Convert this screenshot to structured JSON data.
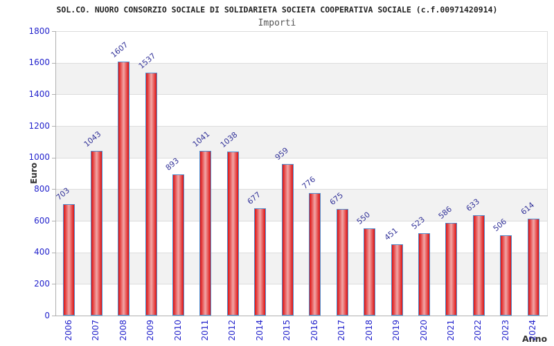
{
  "header": {
    "title": "SOL.CO. NUORO CONSORZIO SOCIALE DI SOLIDARIETA SOCIETA COOPERATIVA SOCIALE (c.f.00971420914)",
    "subtitle": "Importi"
  },
  "chart_data": {
    "type": "bar",
    "title": "Importi",
    "categories": [
      "2006",
      "2007",
      "2008",
      "2009",
      "2010",
      "2011",
      "2012",
      "2014",
      "2015",
      "2016",
      "2017",
      "2018",
      "2019",
      "2020",
      "2021",
      "2022",
      "2023",
      "2024"
    ],
    "values": [
      703,
      1043,
      1607,
      1537,
      893,
      1041,
      1038,
      677,
      959,
      776,
      675,
      550,
      451,
      523,
      586,
      633,
      506,
      614
    ],
    "xlabel": "Anno",
    "ylabel": "Euro",
    "ylim": [
      0,
      1800
    ],
    "ytick_step": 200,
    "grid": "horizontal-bands-alternating",
    "legend": "none",
    "colors": {
      "band_gray": "#f2f2f2",
      "band_white": "#ffffff",
      "gridline": "#dcdcdc",
      "axis_line": "#b0b0b0",
      "tick_label_blue": "#2222cc",
      "value_label_navy": "#333399",
      "bar_edge_red": "#dd1111",
      "bar_center_pink": "#f2a6a6",
      "bar_border_blue": "#4f8fd0"
    }
  }
}
